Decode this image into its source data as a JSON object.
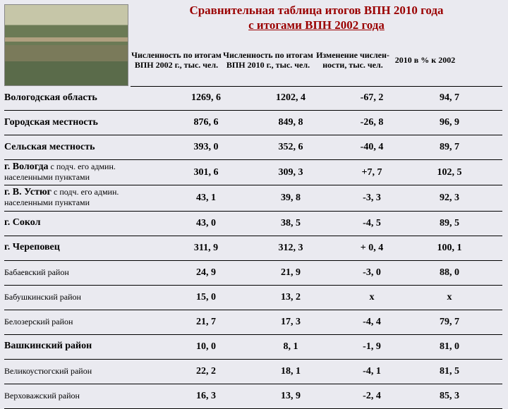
{
  "title_line1": "Сравнительная таблица итогов ВПН 2010 года",
  "title_line2": "с итогами ВПН 2002 года",
  "headers": {
    "h1": "Численность по итогам ВПН 2002 г., тыс. чел.",
    "h2": "Численность по итогам ВПН 2010 г., тыс. чел.",
    "h3": "Изменение числен-ности, тыс. чел.",
    "h4": "2010 в % к 2002"
  },
  "rows": [
    {
      "label": "Вологодская область",
      "v1": "1269, 6",
      "v2": "1202, 4",
      "v3": "-67, 2",
      "v4": "94, 7",
      "bold": true
    },
    {
      "label": "Городская местность",
      "v1": "876, 6",
      "v2": "849, 8",
      "v3": "-26, 8",
      "v4": "96, 9",
      "bold": true
    },
    {
      "label": "Сельская местность",
      "v1": "393, 0",
      "v2": "352, 6",
      "v3": "-40, 4",
      "v4": "89, 7",
      "bold": true
    },
    {
      "label": "г. Вологда",
      "sub": " с подч. его админ. населенными пунктами",
      "v1": "301, 6",
      "v2": "309, 3",
      "v3": "+7, 7",
      "v4": "102, 5",
      "bold": true
    },
    {
      "label": "г. В. Устюг",
      "sub": " с  подч. его админ. населенными пунктами",
      "v1": "43, 1",
      "v2": "39, 8",
      "v3": "-3, 3",
      "v4": "92, 3",
      "bold": true
    },
    {
      "label": "г. Сокол",
      "v1": "43, 0",
      "v2": "38, 5",
      "v3": "-4, 5",
      "v4": "89, 5",
      "bold": true
    },
    {
      "label": "г. Череповец",
      "v1": "311, 9",
      "v2": "312, 3",
      "v3": "+ 0, 4",
      "v4": "100, 1",
      "bold": true
    },
    {
      "label": "Бабаевский район",
      "v1": "24, 9",
      "v2": "21, 9",
      "v3": "-3, 0",
      "v4": "88, 0",
      "small": true
    },
    {
      "label": "Бабушкинский район",
      "v1": "15, 0",
      "v2": "13, 2",
      "v3": "x",
      "v4": "x",
      "small": true
    },
    {
      "label": "Белозерский район",
      "v1": "21, 7",
      "v2": "17, 3",
      "v3": "-4, 4",
      "v4": "79, 7",
      "small": true
    },
    {
      "label": "Вашкинский район",
      "v1": "10, 0",
      "v2": "8, 1",
      "v3": "-1, 9",
      "v4": "81, 0",
      "bold": true
    },
    {
      "label": "Великоустюгский район",
      "v1": "22, 2",
      "v2": "18, 1",
      "v3": "-4, 1",
      "v4": "81, 5",
      "small": true
    },
    {
      "label": "Верховажский район",
      "v1": "16, 3",
      "v2": "13, 9",
      "v3": "-2, 4",
      "v4": "85, 3",
      "small": true
    }
  ]
}
